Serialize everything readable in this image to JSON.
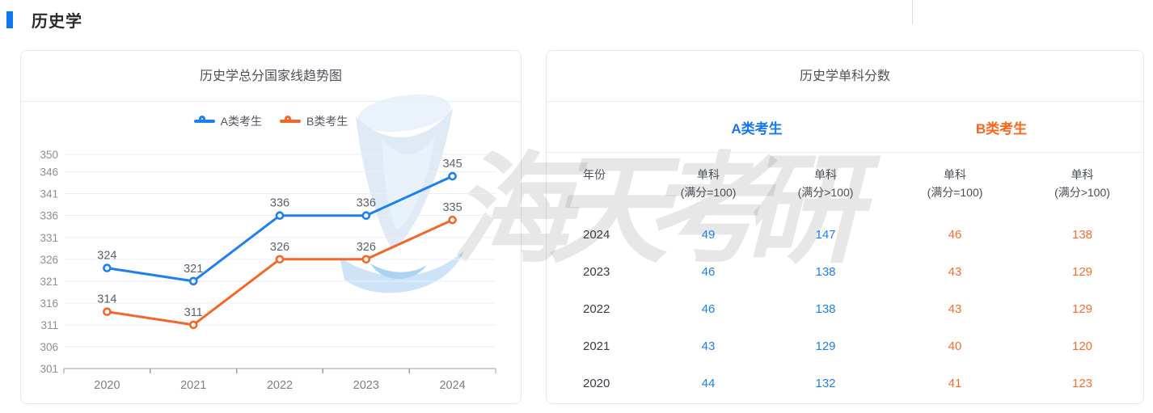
{
  "page": {
    "section_title": "历史学"
  },
  "colors": {
    "accent_blue": "#1276f0",
    "series_a_blue": "#1e80f0",
    "series_b_orange": "#f2672a",
    "table_a_blue": "#1e80f0",
    "table_b_orange": "#fa6c2d",
    "group_a_blue": "#1677f5",
    "group_b_orange": "#ff6418",
    "grid_line": "#e9eef7",
    "axis_line": "#9aa0a8"
  },
  "chart_data": {
    "type": "line",
    "title": "历史学总分国家线趋势图",
    "categories": [
      "2020",
      "2021",
      "2022",
      "2023",
      "2024"
    ],
    "series": [
      {
        "name": "A类考生",
        "color": "#1e80f0",
        "values": [
          324,
          321,
          336,
          336,
          345
        ]
      },
      {
        "name": "B类考生",
        "color": "#f2672a",
        "values": [
          314,
          311,
          326,
          326,
          335
        ]
      }
    ],
    "y_ticks": [
      350,
      346,
      341,
      336,
      331,
      326,
      321,
      316,
      311,
      306,
      301
    ],
    "ylim": [
      301,
      350
    ],
    "xlabel": "",
    "ylabel": "",
    "grid": true,
    "legend_position": "top",
    "point_labels": true
  },
  "table_card": {
    "title": "历史学单科分数",
    "groups": [
      {
        "label": "A类考生"
      },
      {
        "label": "B类考生"
      }
    ],
    "columns": [
      {
        "line1": "年份",
        "line2": ""
      },
      {
        "line1": "单科",
        "line2": "(满分=100)"
      },
      {
        "line1": "单科",
        "line2": "(满分>100)"
      },
      {
        "line1": "单科",
        "line2": "(满分=100)"
      },
      {
        "line1": "单科",
        "line2": "(满分>100)"
      }
    ],
    "rows": [
      {
        "year": "2024",
        "values": [
          "49",
          "147",
          "46",
          "138"
        ]
      },
      {
        "year": "2023",
        "values": [
          "46",
          "138",
          "43",
          "129"
        ]
      },
      {
        "year": "2022",
        "values": [
          "46",
          "138",
          "43",
          "129"
        ]
      },
      {
        "year": "2021",
        "values": [
          "43",
          "129",
          "40",
          "120"
        ]
      },
      {
        "year": "2020",
        "values": [
          "44",
          "132",
          "41",
          "123"
        ]
      }
    ]
  },
  "watermark": {
    "text": "海天考研"
  }
}
